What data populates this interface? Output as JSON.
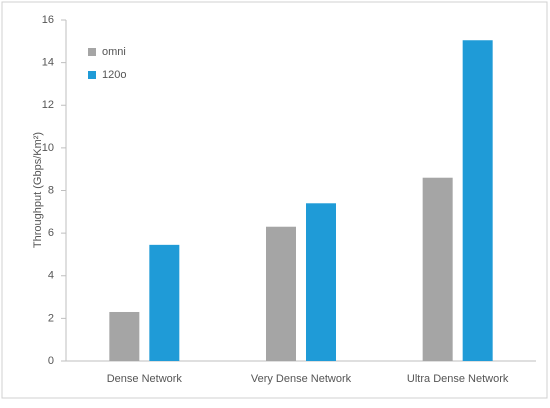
{
  "chart_data": {
    "type": "bar",
    "ylabel": "Throughput (Gbps/Km²)",
    "categories": [
      "Dense Network",
      "Very Dense Network",
      "Ultra Dense Network"
    ],
    "series": [
      {
        "name": "omni",
        "color": "#a5a5a5",
        "values": [
          2.3,
          6.3,
          8.6
        ]
      },
      {
        "name": "120o",
        "color": "#1f9bd7",
        "values": [
          5.45,
          7.4,
          15.05
        ]
      }
    ],
    "ylim": [
      0,
      16
    ],
    "yticks": [
      0,
      2,
      4,
      6,
      8,
      10,
      12,
      14,
      16
    ],
    "grid": false,
    "legend": "upper left"
  }
}
